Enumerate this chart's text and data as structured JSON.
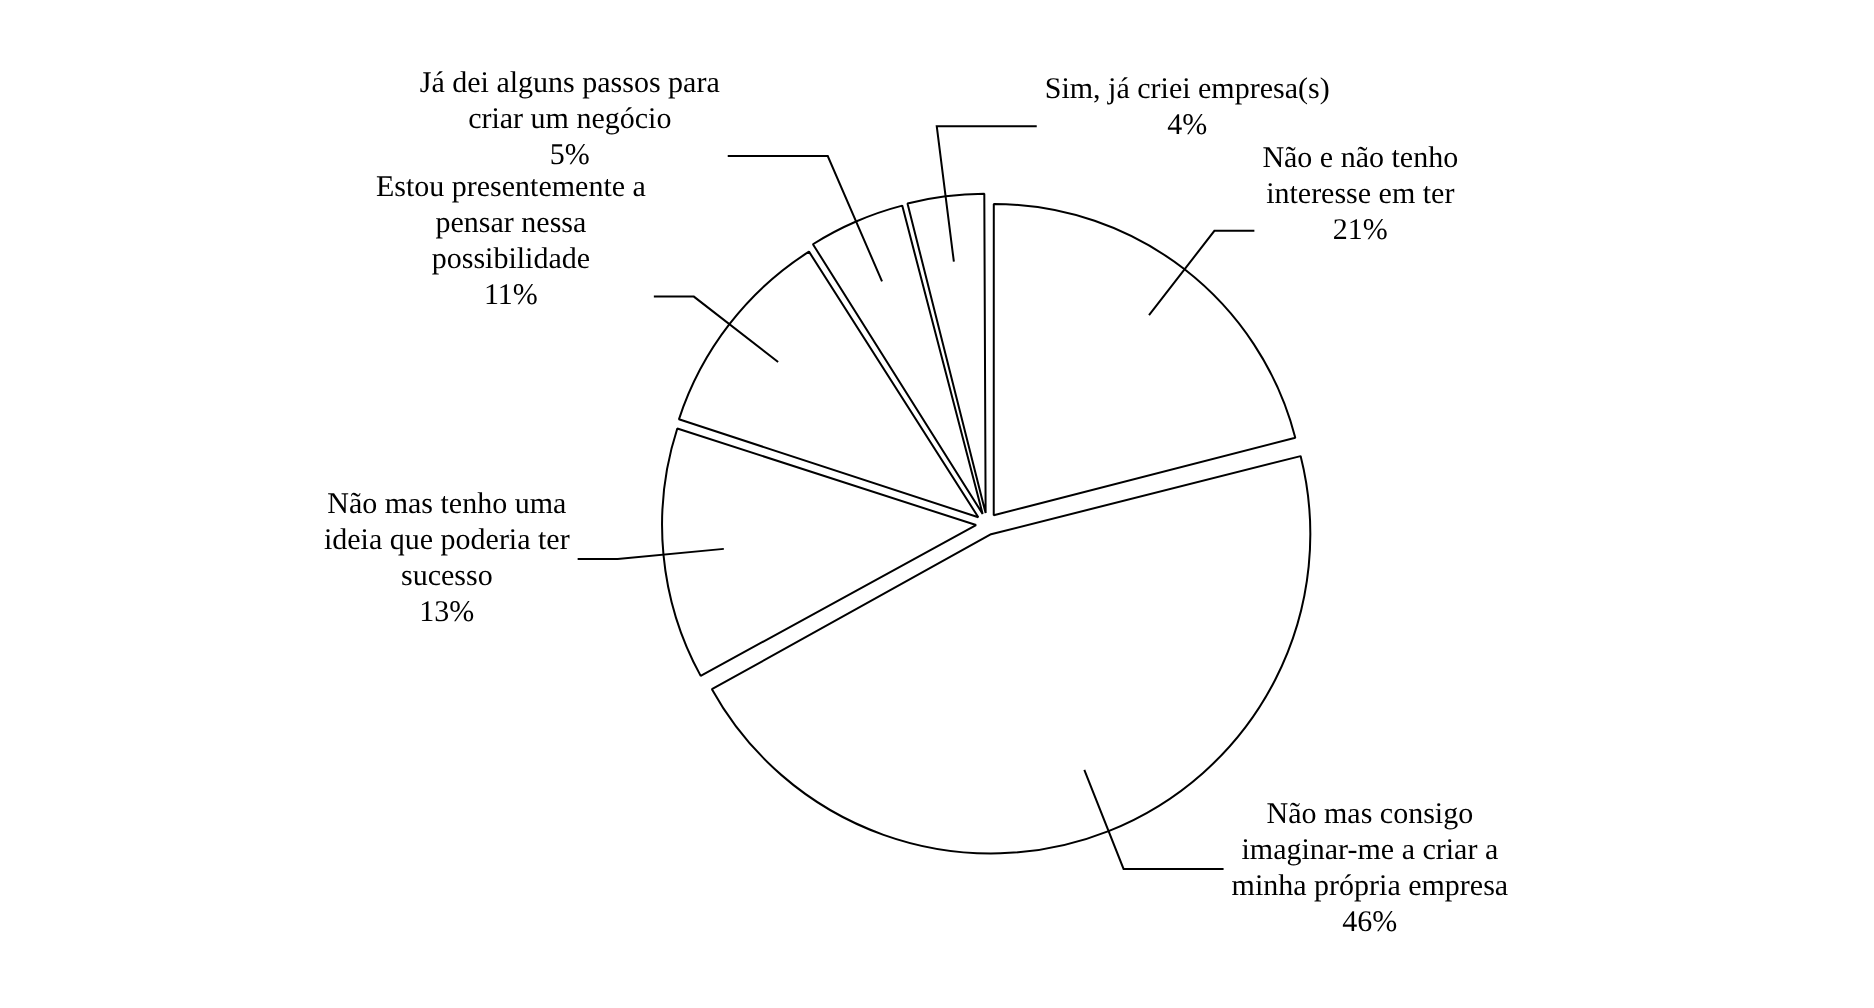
{
  "chart_data": {
    "type": "pie",
    "categories": [
      "Não e não tenho interesse em ter",
      "Não mas consigo imaginar-me a criar a minha própria empresa",
      "Não mas tenho uma ideia que poderia ter sucesso",
      "Estou presentemente a pensar nessa possibilidade",
      "Já dei alguns passos para criar um negócio",
      "Sim, já criei empresa(s)"
    ],
    "values": [
      21,
      46,
      13,
      11,
      5,
      4
    ],
    "colors": [
      "#ffffff",
      "#ffffff",
      "#ffffff",
      "#ffffff",
      "#ffffff",
      "#ffffff"
    ],
    "value_labels": [
      "21%",
      "46%",
      "13%",
      "11%",
      "5%",
      "4%"
    ]
  }
}
